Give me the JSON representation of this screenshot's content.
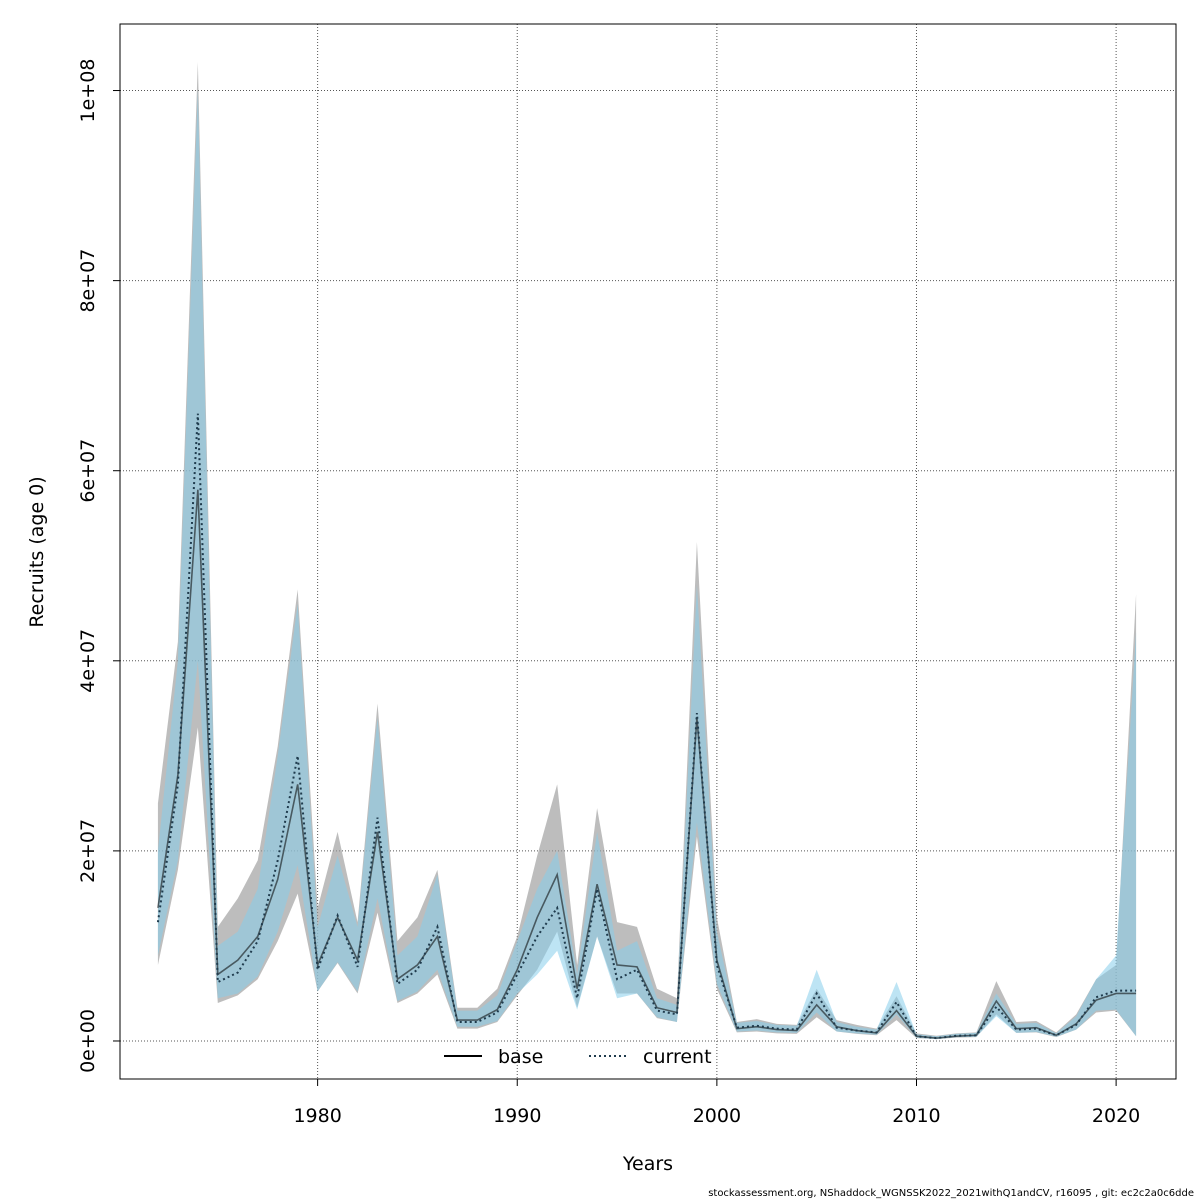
{
  "chart_data": {
    "type": "line",
    "xlabel": "Years",
    "ylabel": "Recruits (age 0)",
    "xlim": [
      1970.1,
      2023.0
    ],
    "ylim": [
      -4000000.0,
      107000000.0
    ],
    "x_ticks": [
      1980,
      1990,
      2000,
      2010,
      2020
    ],
    "x_tick_labels": [
      "1980",
      "1990",
      "2000",
      "2010",
      "2020"
    ],
    "y_ticks": [
      0,
      20000000,
      40000000,
      60000000,
      80000000,
      100000000
    ],
    "y_tick_labels": [
      "0e+00",
      "2e+07",
      "4e+07",
      "6e+07",
      "8e+07",
      "1e+08"
    ],
    "grid": true,
    "legend_position": "bottom-center",
    "colors": {
      "base_line": "#000000",
      "base_band": "#9a9a9a",
      "current_line": "#1f3b4d",
      "current_band": "#87ceeb"
    },
    "x": [
      1972,
      1973,
      1974,
      1975,
      1976,
      1977,
      1978,
      1979,
      1980,
      1981,
      1982,
      1983,
      1984,
      1985,
      1986,
      1987,
      1988,
      1989,
      1990,
      1991,
      1992,
      1993,
      1994,
      1995,
      1996,
      1997,
      1998,
      1999,
      2000,
      2001,
      2002,
      2003,
      2004,
      2005,
      2006,
      2007,
      2008,
      2009,
      2010,
      2011,
      2012,
      2013,
      2014,
      2015,
      2016,
      2017,
      2018,
      2019,
      2020,
      2021
    ],
    "series": [
      {
        "name": "base",
        "style": "solid",
        "values": [
          14000000,
          28000000,
          58000000,
          7000000,
          8500000,
          11000000,
          17000000,
          27000000,
          8000000,
          13000000,
          8500000,
          22000000,
          6500000,
          8000000,
          11000000,
          2200000,
          2200000,
          3300000,
          7500000,
          13000000,
          17500000,
          5500000,
          16500000,
          8000000,
          7800000,
          3500000,
          3000000,
          34000000,
          8500000,
          1300000,
          1500000,
          1200000,
          1100000,
          3800000,
          1500000,
          1100000,
          850000,
          3200000,
          500000,
          300000,
          500000,
          600000,
          4200000,
          1300000,
          1400000,
          600000,
          1800000,
          4300000,
          5000000,
          5000000
        ],
        "lower": [
          8000000,
          18000000,
          33000000,
          4000000,
          4800000,
          6500000,
          10500000,
          15500000,
          5200000,
          8200000,
          5000000,
          13500000,
          4000000,
          5000000,
          7000000,
          1300000,
          1300000,
          2000000,
          4800000,
          7500000,
          11500000,
          3500000,
          11000000,
          5000000,
          5000000,
          2400000,
          2000000,
          21500000,
          5500000,
          900000,
          1000000,
          800000,
          750000,
          2500000,
          1000000,
          750000,
          600000,
          2200000,
          300000,
          200000,
          350000,
          400000,
          2800000,
          850000,
          900000,
          400000,
          1200000,
          3000000,
          3200000,
          500000
        ],
        "upper": [
          25000000,
          42000000,
          103000000,
          12000000,
          15000000,
          19000000,
          31000000,
          47500000,
          14000000,
          22000000,
          12500000,
          35500000,
          10500000,
          13000000,
          18000000,
          3500000,
          3500000,
          5500000,
          11000000,
          19500000,
          27000000,
          8000000,
          24500000,
          12500000,
          12000000,
          5500000,
          4500000,
          52500000,
          13000000,
          2000000,
          2300000,
          1800000,
          1700000,
          5500000,
          2200000,
          1700000,
          1300000,
          4700000,
          800000,
          550000,
          800000,
          900000,
          6300000,
          2000000,
          2100000,
          900000,
          2800000,
          6500000,
          8000000,
          47000000
        ]
      },
      {
        "name": "current",
        "style": "dotted",
        "values": [
          12500000,
          27000000,
          66000000,
          6200000,
          7200000,
          10500000,
          19000000,
          30000000,
          7500000,
          13200000,
          7800000,
          23500000,
          6000000,
          7500000,
          12000000,
          2000000,
          2000000,
          3000000,
          7000000,
          11000000,
          14000000,
          4500000,
          16000000,
          6500000,
          7500000,
          3200000,
          2800000,
          34500000,
          8000000,
          1400000,
          1600000,
          1300000,
          1200000,
          5000000,
          1400000,
          1100000,
          900000,
          4100000,
          500000,
          300000,
          550000,
          600000,
          3600000,
          1200000,
          1300000,
          600000,
          1700000,
          4600000,
          5300000,
          5300000
        ],
        "lower": [
          9000000,
          19000000,
          40000000,
          4500000,
          5000000,
          6800000,
          11500000,
          18500000,
          5200000,
          8300000,
          5200000,
          15000000,
          4200000,
          5200000,
          7500000,
          1500000,
          1500000,
          2100000,
          5000000,
          7000000,
          9500000,
          3300000,
          11000000,
          4500000,
          5000000,
          2500000,
          2000000,
          23000000,
          6000000,
          1000000,
          1100000,
          900000,
          850000,
          3000000,
          1000000,
          800000,
          650000,
          2800000,
          350000,
          200000,
          400000,
          450000,
          2600000,
          850000,
          950000,
          450000,
          1200000,
          3200000,
          3300000,
          500000
        ],
        "upper": [
          20000000,
          40000000,
          100000000,
          10000000,
          11500000,
          16000000,
          30000000,
          46000000,
          12000000,
          19500000,
          12000000,
          34000000,
          9000000,
          11000000,
          17500000,
          3200000,
          3200000,
          4800000,
          10500000,
          16000000,
          20000000,
          7000000,
          22000000,
          9500000,
          10500000,
          4500000,
          3800000,
          48000000,
          11500000,
          1900000,
          2100000,
          1700000,
          1600000,
          7500000,
          2000000,
          1500000,
          1200000,
          6200000,
          700000,
          500000,
          750000,
          850000,
          5000000,
          1800000,
          1900000,
          800000,
          2600000,
          6500000,
          9000000,
          43000000
        ]
      }
    ],
    "legend": [
      {
        "label": "base",
        "style": "solid"
      },
      {
        "label": "current",
        "style": "dotted"
      }
    ]
  },
  "footer": "stockassessment.org, NShaddock_WGNSSK2022_2021withQ1andCV, r16095 , git: ec2c2a0c6dde"
}
